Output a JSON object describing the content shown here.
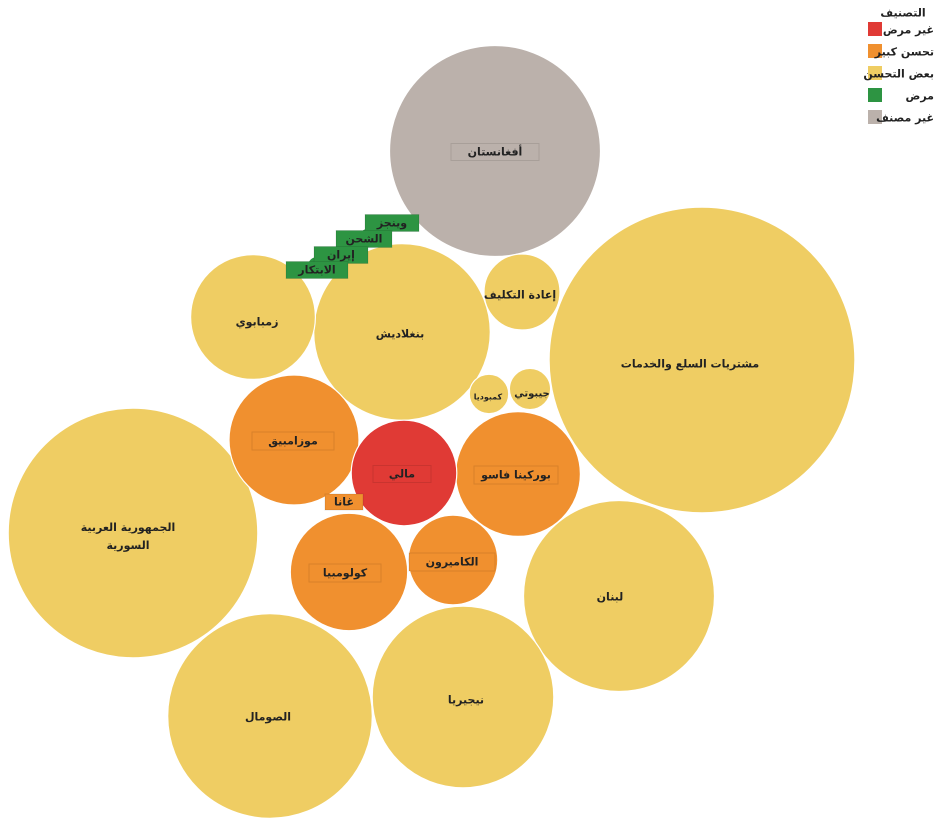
{
  "chart_data": {
    "type": "bubble",
    "legend": {
      "title": "التصنيف",
      "placement": "top-right",
      "items": [
        {
          "key": "not_sick",
          "label": "غير مرض",
          "color": "#e03a35"
        },
        {
          "key": "major",
          "label": "تحسن كبير",
          "color": "#f0902f"
        },
        {
          "key": "some",
          "label": "بعض التحسن",
          "color": "#efcd63"
        },
        {
          "key": "sick",
          "label": "مرض",
          "color": "#2d9442"
        },
        {
          "key": "unclassified",
          "label": "غير مصنف",
          "color": "#bbb1ab"
        }
      ]
    },
    "bubbles": [
      {
        "label": "أفغانستان",
        "category": "unclassified",
        "size": 100
      },
      {
        "label": "مشتريات السلع والخدمات",
        "category": "some",
        "size": 210
      },
      {
        "label": "الجمهورية العربية السورية",
        "category": "some",
        "size": 140
      },
      {
        "label": "الصومال",
        "category": "some",
        "size": 94
      },
      {
        "label": "بنغلاديش",
        "category": "some",
        "size": 70
      },
      {
        "label": "لبنان",
        "category": "some",
        "size": 82
      },
      {
        "label": "نيجيريا",
        "category": "some",
        "size": 74
      },
      {
        "label": "زمبابوي",
        "category": "some",
        "size": 35
      },
      {
        "label": "إعادة التكليف",
        "category": "some",
        "size": 13
      },
      {
        "label": "كمبوديا",
        "category": "some",
        "size": 3.5
      },
      {
        "label": "جيبوتي",
        "category": "some",
        "size": 3.8
      },
      {
        "label": "موزامبيق",
        "category": "major",
        "size": 38
      },
      {
        "label": "بوركينا فاسو",
        "category": "major",
        "size": 35
      },
      {
        "label": "كولومبيا",
        "category": "major",
        "size": 31
      },
      {
        "label": "الكاميرون",
        "category": "major",
        "size": 18
      },
      {
        "label": "غانا",
        "category": "major",
        "size": 0.5
      },
      {
        "label": "مالي",
        "category": "not_sick",
        "size": 25
      },
      {
        "label": "وينجز",
        "category": "sick",
        "size": 0.5
      },
      {
        "label": "الشحن",
        "category": "sick",
        "size": 0.5
      },
      {
        "label": "إيران",
        "category": "sick",
        "size": 0.5
      },
      {
        "label": "الابتكار",
        "category": "sick",
        "size": 0.6
      }
    ]
  }
}
